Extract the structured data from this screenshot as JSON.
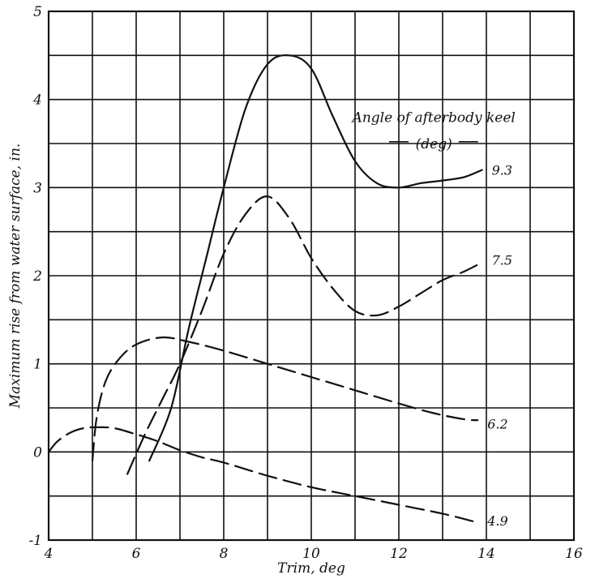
{
  "chart_data": {
    "type": "line",
    "title": "",
    "xlabel": "Trim, deg",
    "ylabel": "Maximum rise from water surface, in.",
    "xlim": [
      4,
      16
    ],
    "ylim": [
      -1,
      5
    ],
    "xticks": [
      "4",
      "6",
      "8",
      "10",
      "12",
      "14",
      "16"
    ],
    "yticks": [
      "-1",
      "0",
      "1",
      "2",
      "3",
      "4",
      "5"
    ],
    "grid": true,
    "legend_title": [
      "Angle of afterbody keel",
      "(deg)"
    ],
    "series": [
      {
        "name": "9.3",
        "style": "solid",
        "x": [
          6.3,
          6.8,
          7.2,
          7.6,
          8.0,
          8.5,
          9.0,
          9.5,
          10.0,
          10.5,
          11.0,
          11.5,
          12.0,
          12.5,
          13.0,
          13.5,
          13.9
        ],
        "y": [
          -0.1,
          0.5,
          1.4,
          2.2,
          3.0,
          3.9,
          4.4,
          4.5,
          4.35,
          3.8,
          3.3,
          3.05,
          3.0,
          3.05,
          3.08,
          3.12,
          3.2
        ]
      },
      {
        "name": "7.5",
        "style": "dashed",
        "x": [
          5.8,
          6.2,
          6.6,
          7.0,
          7.5,
          8.0,
          8.5,
          9.0,
          9.5,
          10.0,
          10.5,
          11.0,
          11.5,
          12.0,
          12.5,
          13.0,
          13.5,
          13.9
        ],
        "y": [
          -0.25,
          0.2,
          0.6,
          1.0,
          1.6,
          2.25,
          2.7,
          2.9,
          2.65,
          2.2,
          1.85,
          1.6,
          1.55,
          1.65,
          1.8,
          1.95,
          2.05,
          2.15
        ],
        "label_y": 2.18
      },
      {
        "name": "6.2",
        "style": "dashed",
        "x": [
          5.0,
          5.1,
          5.3,
          5.6,
          6.0,
          6.6,
          7.2,
          8.0,
          9.0,
          10.0,
          11.0,
          12.0,
          12.8,
          13.5,
          13.8
        ],
        "y": [
          -0.1,
          0.4,
          0.8,
          1.05,
          1.22,
          1.3,
          1.25,
          1.15,
          1.0,
          0.85,
          0.7,
          0.55,
          0.44,
          0.37,
          0.36
        ],
        "label_y": 0.32
      },
      {
        "name": "4.9",
        "style": "dashed",
        "x": [
          4.0,
          4.2,
          4.5,
          4.8,
          5.1,
          5.5,
          6.0,
          6.5,
          7.0,
          7.5,
          8.0,
          9.0,
          10.0,
          11.0,
          12.0,
          13.0,
          13.8
        ],
        "y": [
          0.0,
          0.12,
          0.22,
          0.27,
          0.28,
          0.27,
          0.2,
          0.12,
          0.02,
          -0.06,
          -0.12,
          -0.27,
          -0.4,
          -0.5,
          -0.6,
          -0.7,
          -0.8
        ],
        "label_y": -0.78
      }
    ]
  }
}
